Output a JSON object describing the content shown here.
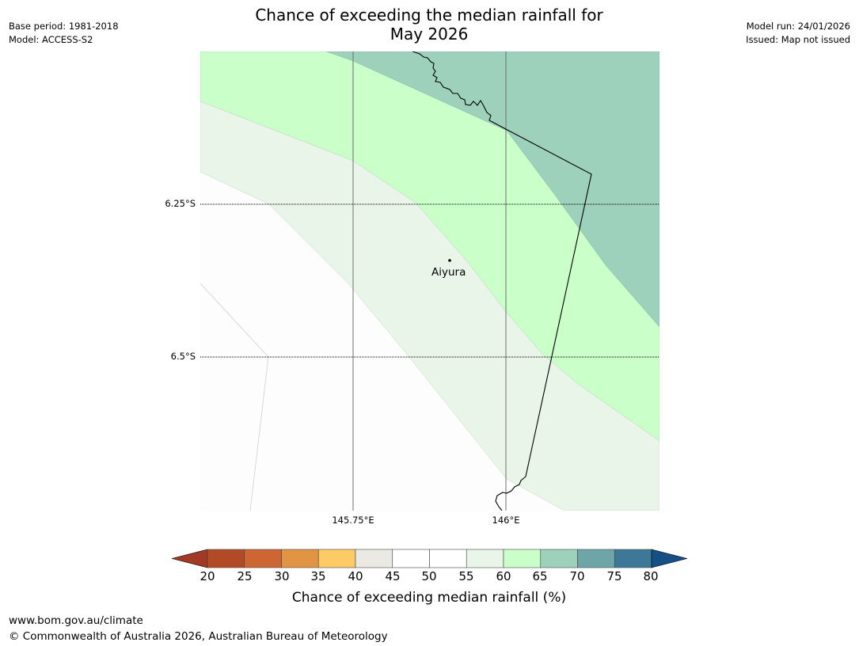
{
  "header": {
    "title_line1": "Chance of exceeding the median rainfall for",
    "title_line2": "May 2026",
    "base_period": "Base period: 1981-2018",
    "model": "Model: ACCESS-S2",
    "model_run": "Model run: 24/01/2026",
    "issued": "Issued: Map not issued"
  },
  "map": {
    "lat_labels": [
      "6.25°S",
      "6.5°S"
    ],
    "lon_labels": [
      "145.75°E",
      "146°E"
    ],
    "place": "Aiyura",
    "colors": {
      "c55_60": "#eaf5ea",
      "c60_65": "#caffca",
      "c65_70": "#9dd1bb",
      "c50_55": "#fdfdfd"
    }
  },
  "colorbar": {
    "ticks": [
      "20",
      "25",
      "30",
      "35",
      "40",
      "45",
      "50",
      "55",
      "60",
      "65",
      "70",
      "75",
      "80"
    ],
    "colors": [
      "#a03a24",
      "#b34a26",
      "#cd6632",
      "#e19444",
      "#fccb66",
      "#ebe9e4",
      "#ffffff",
      "#ffffff",
      "#eaf5ea",
      "#caffca",
      "#9dd1bb",
      "#6ea6a8",
      "#3e7898",
      "#164f85"
    ],
    "title": "Chance of exceeding median rainfall (%)"
  },
  "footer": {
    "url": "www.bom.gov.au/climate",
    "copyright": "© Commonwealth of Australia 2026, Australian Bureau of Meteorology"
  }
}
